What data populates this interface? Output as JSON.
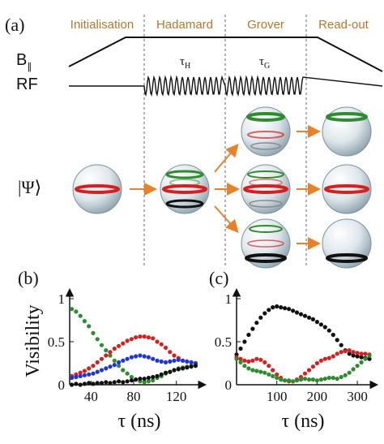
{
  "panel_labels": {
    "a": "(a)",
    "b": "(b)",
    "c": "(c)"
  },
  "phases": [
    "Initialisation",
    "Hadamard",
    "Grover",
    "Read-out"
  ],
  "row_labels": {
    "b_parallel": "B",
    "b_parallel_sub": "∥",
    "rf": "RF",
    "psi": "|Ψ⟩"
  },
  "pulse_labels": {
    "hadamard": "τ",
    "hadamard_sub": "H",
    "grover": "τ",
    "grover_sub": "G"
  },
  "colors": {
    "phase_text": "#b5762e",
    "arrow": "#e8822a",
    "black": "#111111",
    "red": "#d42020",
    "green": "#2e8b2e",
    "blue": "#1f35d6"
  },
  "chart_data": [
    {
      "type": "scatter",
      "panel": "(b)",
      "xlabel": "τ (ns)",
      "ylabel": "Visibility",
      "xlim": [
        20,
        140
      ],
      "ylim": [
        0,
        1
      ],
      "xticks": [
        40,
        80,
        120
      ],
      "yticks": [
        0,
        0.5,
        1
      ],
      "xtick_labels": [
        "40",
        "80",
        "120"
      ],
      "ytick_labels": [
        "0",
        "0.5",
        "1"
      ],
      "series": [
        {
          "color": "green",
          "x": [
            22,
            26,
            30,
            34,
            38,
            42,
            46,
            50,
            54,
            58,
            62,
            66,
            70,
            74,
            78,
            82,
            86,
            90,
            94,
            98,
            102,
            106,
            110,
            114,
            118,
            122,
            126,
            130,
            134,
            138
          ],
          "y": [
            0.88,
            0.85,
            0.8,
            0.74,
            0.68,
            0.6,
            0.53,
            0.46,
            0.4,
            0.34,
            0.28,
            0.22,
            0.17,
            0.13,
            0.09,
            0.06,
            0.04,
            0.03,
            0.04,
            0.05,
            0.08,
            0.1,
            0.13,
            0.15,
            0.17,
            0.19,
            0.2,
            0.21,
            0.22,
            0.23
          ]
        },
        {
          "color": "red",
          "x": [
            22,
            26,
            30,
            34,
            38,
            42,
            46,
            50,
            54,
            58,
            62,
            66,
            70,
            74,
            78,
            82,
            86,
            90,
            94,
            98,
            102,
            106,
            110,
            114,
            118,
            122,
            126,
            130,
            134,
            138
          ],
          "y": [
            0.1,
            0.12,
            0.14,
            0.16,
            0.19,
            0.22,
            0.26,
            0.3,
            0.34,
            0.38,
            0.42,
            0.45,
            0.48,
            0.51,
            0.53,
            0.55,
            0.56,
            0.56,
            0.55,
            0.54,
            0.5,
            0.47,
            0.43,
            0.38,
            0.34,
            0.31,
            0.28,
            0.27,
            0.26,
            0.25
          ]
        },
        {
          "color": "blue",
          "x": [
            22,
            26,
            30,
            34,
            38,
            42,
            46,
            50,
            54,
            58,
            62,
            66,
            70,
            74,
            78,
            82,
            86,
            90,
            94,
            98,
            102,
            106,
            110,
            114,
            118,
            122,
            126,
            130,
            134,
            138
          ],
          "y": [
            0.08,
            0.09,
            0.1,
            0.11,
            0.12,
            0.13,
            0.15,
            0.17,
            0.19,
            0.21,
            0.23,
            0.26,
            0.28,
            0.3,
            0.32,
            0.33,
            0.34,
            0.33,
            0.32,
            0.3,
            0.28,
            0.27,
            0.26,
            0.27,
            0.28,
            0.29,
            0.28,
            0.27,
            0.26,
            0.25
          ]
        },
        {
          "color": "black",
          "x": [
            22,
            26,
            30,
            34,
            38,
            42,
            46,
            50,
            54,
            58,
            62,
            66,
            70,
            74,
            78,
            82,
            86,
            90,
            94,
            98,
            102,
            106,
            110,
            114,
            118,
            122,
            126,
            130,
            134,
            138
          ],
          "y": [
            0.0,
            0.01,
            0.0,
            0.01,
            0.02,
            0.01,
            0.02,
            0.02,
            0.03,
            0.02,
            0.03,
            0.04,
            0.03,
            0.04,
            0.05,
            0.06,
            0.07,
            0.07,
            0.08,
            0.09,
            0.1,
            0.12,
            0.14,
            0.15,
            0.17,
            0.18,
            0.19,
            0.2,
            0.21,
            0.22
          ]
        }
      ]
    },
    {
      "type": "scatter",
      "panel": "(c)",
      "xlabel": "τ (ns)",
      "ylabel": "",
      "xlim": [
        0,
        330
      ],
      "ylim": [
        0,
        1
      ],
      "xticks": [
        100,
        200,
        300
      ],
      "yticks": [
        0,
        0.5,
        1
      ],
      "xtick_labels": [
        "100",
        "200",
        "300"
      ],
      "ytick_labels": [
        "0",
        "0.5",
        "1"
      ],
      "series": [
        {
          "color": "black",
          "x": [
            0,
            10,
            20,
            30,
            40,
            50,
            60,
            70,
            80,
            90,
            100,
            110,
            120,
            130,
            140,
            150,
            160,
            170,
            180,
            190,
            200,
            210,
            220,
            230,
            240,
            250,
            260,
            270,
            280,
            290,
            300,
            310,
            320,
            330
          ],
          "y": [
            0.35,
            0.42,
            0.5,
            0.58,
            0.65,
            0.72,
            0.78,
            0.83,
            0.87,
            0.9,
            0.91,
            0.9,
            0.89,
            0.88,
            0.86,
            0.84,
            0.82,
            0.8,
            0.78,
            0.76,
            0.73,
            0.7,
            0.67,
            0.63,
            0.58,
            0.52,
            0.46,
            0.4,
            0.36,
            0.34,
            0.33,
            0.32,
            0.31,
            0.3
          ]
        },
        {
          "color": "red",
          "x": [
            0,
            10,
            20,
            30,
            40,
            50,
            60,
            70,
            80,
            90,
            100,
            110,
            120,
            130,
            140,
            150,
            160,
            170,
            180,
            190,
            200,
            210,
            220,
            230,
            240,
            250,
            260,
            270,
            280,
            290,
            300,
            310,
            320,
            330
          ],
          "y": [
            0.32,
            0.3,
            0.28,
            0.27,
            0.28,
            0.3,
            0.29,
            0.26,
            0.22,
            0.17,
            0.12,
            0.08,
            0.05,
            0.04,
            0.04,
            0.06,
            0.09,
            0.13,
            0.17,
            0.21,
            0.25,
            0.28,
            0.3,
            0.31,
            0.33,
            0.36,
            0.38,
            0.39,
            0.4,
            0.38,
            0.37,
            0.36,
            0.36,
            0.35
          ]
        },
        {
          "color": "green",
          "x": [
            0,
            10,
            20,
            30,
            40,
            50,
            60,
            70,
            80,
            90,
            100,
            110,
            120,
            130,
            140,
            150,
            160,
            170,
            180,
            190,
            200,
            210,
            220,
            230,
            240,
            250,
            260,
            270,
            280,
            290,
            300,
            310,
            320,
            330
          ],
          "y": [
            0.3,
            0.26,
            0.22,
            0.19,
            0.17,
            0.16,
            0.15,
            0.14,
            0.12,
            0.1,
            0.08,
            0.06,
            0.05,
            0.05,
            0.04,
            0.05,
            0.06,
            0.07,
            0.06,
            0.06,
            0.05,
            0.06,
            0.07,
            0.08,
            0.08,
            0.07,
            0.09,
            0.11,
            0.14,
            0.18,
            0.22,
            0.26,
            0.3,
            0.34
          ]
        }
      ]
    }
  ]
}
